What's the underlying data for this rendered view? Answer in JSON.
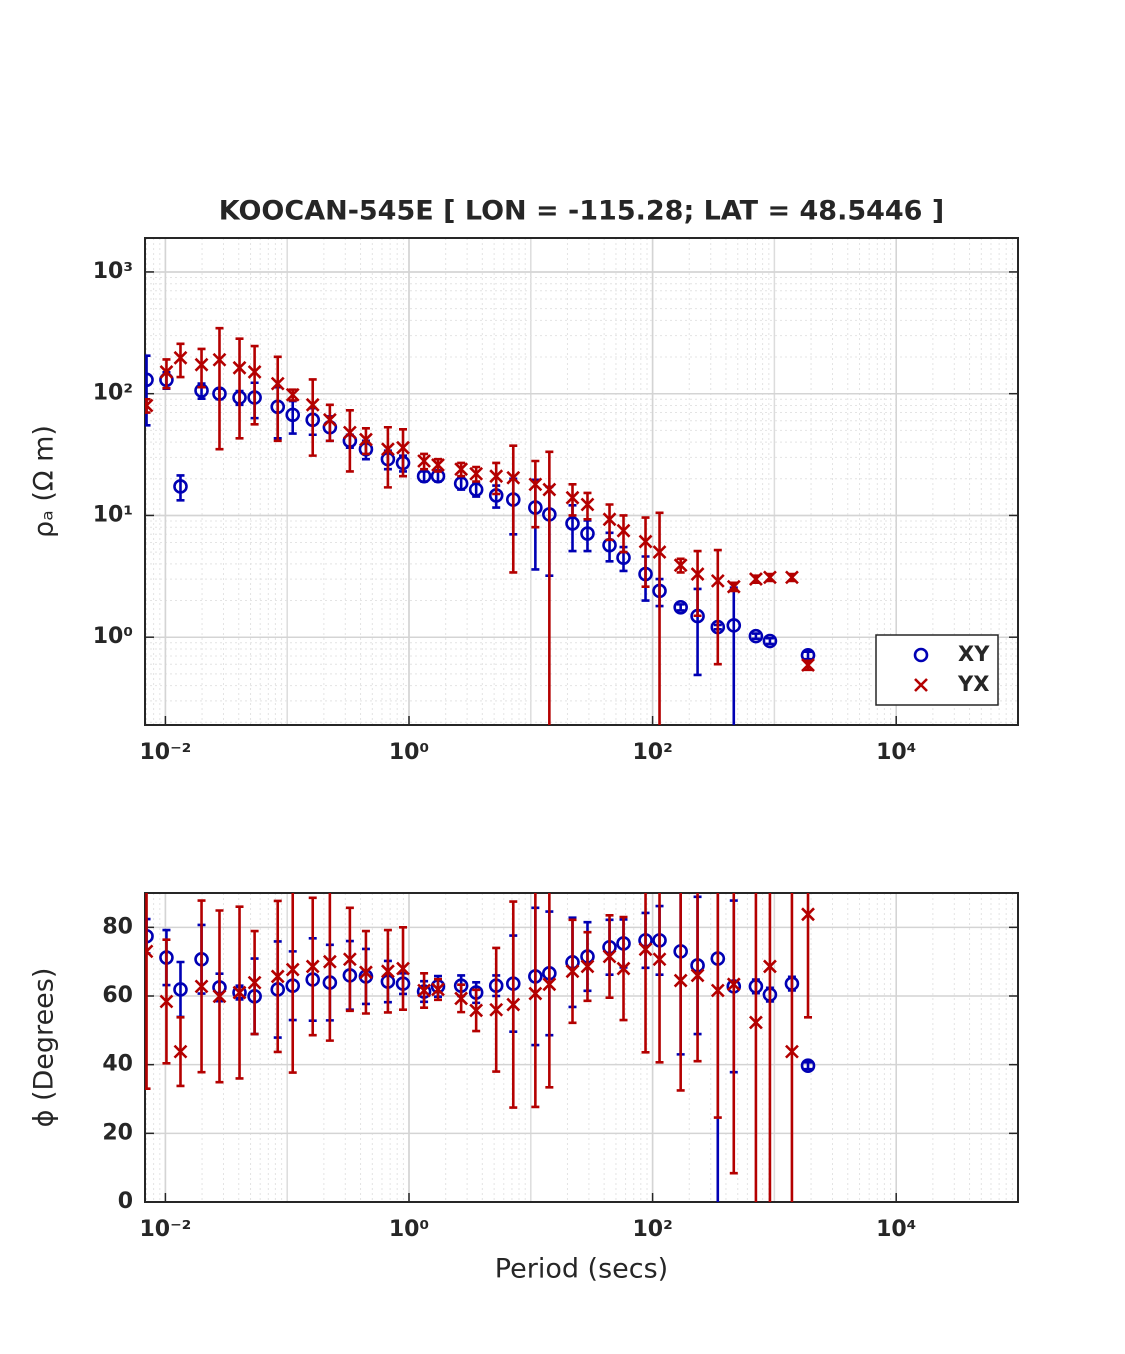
{
  "chart_data": [
    {
      "type": "errorbar",
      "title": "KOOCAN-545E [ LON = -115.28; LAT = 48.5446 ]",
      "y_label": "ρₐ (Ω m)",
      "x_log": true,
      "y_log": true,
      "grid": true,
      "legend": "lower right",
      "xlim": [
        0.0068,
        100000
      ],
      "ylim": [
        0.19,
        1900
      ],
      "xticks": [
        {
          "value": 0.01,
          "label": "10⁻²"
        },
        {
          "value": 1,
          "label": "10⁰"
        },
        {
          "value": 100,
          "label": "10²"
        },
        {
          "value": 10000,
          "label": "10⁴"
        }
      ],
      "yticks": [
        {
          "value": 1,
          "label": "10⁰"
        },
        {
          "value": 10,
          "label": "10¹"
        },
        {
          "value": 100,
          "label": "10²"
        },
        {
          "value": 1000,
          "label": "10³"
        }
      ],
      "x": [
        0.007,
        0.0102,
        0.0133,
        0.0198,
        0.0278,
        0.0406,
        0.054,
        0.0836,
        0.111,
        0.162,
        0.224,
        0.327,
        0.443,
        0.671,
        0.893,
        1.33,
        1.73,
        2.68,
        3.56,
        5.2,
        7.18,
        10.9,
        14.2,
        22,
        29.2,
        44.3,
        57.7,
        87.5,
        114,
        170,
        234,
        343,
        464,
        705,
        919,
        1393,
        1888
      ],
      "series": [
        {
          "name": "XY",
          "marker": "circle",
          "color": "#0000b4",
          "values": [
            130,
            130,
            17.3,
            106,
            100,
            93,
            93,
            78,
            67,
            61,
            53,
            41,
            35,
            29,
            27,
            21,
            21,
            18.3,
            16.3,
            14.6,
            13.5,
            11.6,
            10.2,
            8.6,
            7.1,
            5.7,
            4.5,
            3.3,
            2.4,
            1.76,
            1.49,
            1.21,
            1.25,
            1.02,
            0.93,
            null,
            0.71
          ],
          "errors": [
            75,
            20,
            4,
            15,
            10,
            12,
            30,
            35,
            20,
            15,
            12,
            5,
            6,
            5,
            4,
            2,
            2,
            2,
            2,
            3,
            6.5,
            8,
            7,
            3.5,
            2,
            1.5,
            1,
            1.3,
            0.6,
            0.1,
            1,
            0.05,
            1.3,
            0.05,
            0.05,
            null,
            0.05
          ]
        },
        {
          "name": "YX",
          "marker": "x",
          "color": "#b40000",
          "values": [
            80,
            151,
            197,
            173,
            190,
            163,
            151,
            121,
            98,
            81,
            61,
            48,
            42,
            35,
            36,
            28,
            26,
            24,
            22,
            21,
            20.4,
            18,
            16.3,
            14,
            12.3,
            9.3,
            7.5,
            6.1,
            5,
            3.9,
            3.3,
            2.9,
            2.6,
            3,
            3.1,
            3.1,
            0.59
          ],
          "errors": [
            10,
            40,
            60,
            60,
            155,
            120,
            95,
            80,
            10,
            50,
            20,
            25,
            10,
            18,
            15,
            4,
            3,
            3,
            3,
            6,
            17,
            10,
            17,
            4,
            3,
            3,
            2.5,
            3.5,
            5.5,
            0.5,
            1.8,
            2.3,
            0.2,
            0.2,
            0.2,
            0.2,
            0.05
          ]
        }
      ]
    },
    {
      "type": "errorbar",
      "y_label": "ϕ (Degrees)",
      "x_label": "Period (secs)",
      "x_log": true,
      "y_log": false,
      "grid": true,
      "xlim": [
        0.0068,
        100000
      ],
      "ylim": [
        0,
        90
      ],
      "xticks": [
        {
          "value": 0.01,
          "label": "10⁻²"
        },
        {
          "value": 1,
          "label": "10⁰"
        },
        {
          "value": 100,
          "label": "10²"
        },
        {
          "value": 10000,
          "label": "10⁴"
        }
      ],
      "yticks": [
        0,
        20,
        40,
        60,
        80
      ],
      "x": [
        0.007,
        0.0102,
        0.0133,
        0.0198,
        0.0278,
        0.0406,
        0.054,
        0.0836,
        0.111,
        0.162,
        0.224,
        0.327,
        0.443,
        0.671,
        0.893,
        1.33,
        1.73,
        2.68,
        3.56,
        5.2,
        7.18,
        10.9,
        14.2,
        22,
        29.2,
        44.3,
        57.7,
        87.5,
        114,
        170,
        234,
        343,
        464,
        705,
        919,
        1393,
        1888
      ],
      "series": [
        {
          "name": "XY",
          "marker": "circle",
          "color": "#0000b4",
          "values": [
            77.4,
            71.2,
            61.9,
            70.7,
            62.5,
            61,
            59.9,
            61.9,
            63,
            64.8,
            63.9,
            66,
            65.7,
            64.2,
            63.6,
            61.3,
            62.8,
            63,
            61,
            63,
            63.6,
            65.7,
            66.6,
            69.8,
            71.5,
            74.2,
            75.3,
            76.2,
            76.2,
            73,
            68.9,
            70.9,
            62.8,
            62.8,
            60.4,
            63.6,
            39.7
          ],
          "errors": [
            5,
            8,
            8,
            10,
            4,
            2,
            11,
            14,
            10,
            12,
            11,
            10,
            8,
            6,
            3,
            3,
            3,
            3,
            3,
            3,
            14,
            20,
            18,
            13,
            10,
            8,
            7,
            8,
            10,
            30,
            20,
            72,
            25,
            2,
            2,
            2,
            1
          ]
        },
        {
          "name": "YX",
          "marker": "x",
          "color": "#b40000",
          "values": [
            73,
            58.4,
            43.8,
            62.8,
            59.9,
            61,
            63.9,
            65.7,
            67.7,
            68.6,
            70,
            70.7,
            66.9,
            67.2,
            68,
            61.6,
            61.9,
            59.3,
            55.8,
            56,
            57.5,
            60.7,
            63.4,
            67.2,
            68.6,
            71.5,
            68,
            73.6,
            70.7,
            64.5,
            66,
            61.6,
            63.4,
            52.3,
            68.6,
            43.8,
            83.8
          ],
          "errors": [
            40,
            18,
            10,
            25,
            25,
            25,
            15,
            22,
            30,
            20,
            23,
            15,
            12,
            12,
            12,
            5,
            3,
            4,
            6,
            18,
            30,
            33,
            30,
            15,
            10,
            12,
            15,
            30,
            30,
            32,
            25,
            37,
            55,
            60,
            70,
            70,
            30
          ]
        }
      ]
    }
  ]
}
